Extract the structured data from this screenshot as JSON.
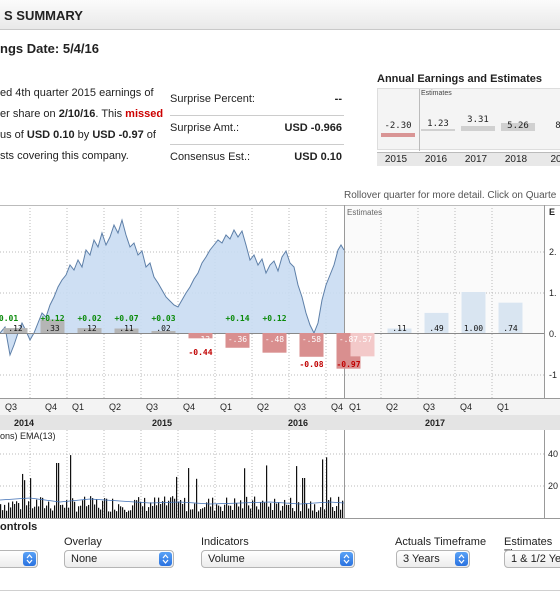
{
  "header": {
    "title": "S SUMMARY"
  },
  "earnings_date": "ngs Date: 5/4/16",
  "summary": {
    "line1": "ed 4th quarter 2015 earnings of",
    "line2_pre": "er share on ",
    "line2_date": "2/10/16",
    "line2_mid": ". This ",
    "line2_missed": "missed",
    "line3_pre": "us of ",
    "line3_consensus": "USD 0.10",
    "line3_mid": " by ",
    "line3_diff": "USD -0.97",
    "line3_post": " of",
    "line4": "sts covering this company."
  },
  "surprise": {
    "percent_label": "Surprise Percent:",
    "percent_value": "--",
    "amt_label": "Surprise Amt.:",
    "amt_value": "USD -0.966",
    "consensus_label": "Consensus Est.:",
    "consensus_value": "USD 0.10"
  },
  "annual": {
    "title": "Annual Earnings and Estimates",
    "estimates_label": "Estimates",
    "values": [
      "-2.30",
      "1.23",
      "3.31",
      "5.26",
      "8"
    ],
    "years": [
      "2015",
      "2016",
      "2017",
      "2018",
      "20"
    ]
  },
  "rollover_note": "Rollover quarter for more detail. Click on Quarte",
  "chart": {
    "estimates_label": "Estimates",
    "right_header": "E",
    "right_ticks": [
      "2.",
      "1.",
      "0.",
      "-1"
    ],
    "quarter_labels": [
      "Q3",
      "Q4",
      "Q1",
      "Q2",
      "Q3",
      "Q4",
      "Q1",
      "Q2",
      "Q3",
      "Q4",
      "Q1",
      "Q2",
      "Q3",
      "Q4",
      "Q1"
    ],
    "year_labels": [
      "2014",
      "2015",
      "2016",
      "2017"
    ],
    "bar_labels": [
      ".12",
      ".33",
      ".12",
      ".11",
      ".02",
      "-.13",
      "-.36",
      "-.48",
      "-.58",
      "-.87",
      "-.57",
      ".11",
      ".49",
      "1.00",
      ".74"
    ],
    "surprise_labels": [
      "0.01",
      "+0.12",
      "+0.02",
      "+0.07",
      "+0.03",
      "-0.44",
      "+0.14",
      "+0.12",
      "-0.08",
      "-0.97"
    ],
    "volume_label": "ons) EMA(13)",
    "volume_ticks": [
      "40",
      "20"
    ]
  },
  "chart_data": {
    "type": "bar",
    "title": "",
    "xlabel": "",
    "ylabel": "",
    "categories": [
      "Q3 2014",
      "Q4 2014",
      "Q1 2015",
      "Q2 2015",
      "Q3 2015",
      "Q4 2015",
      "Q1 2016",
      "Q2 2016",
      "Q3 2016",
      "Q4 2016",
      "Q1 2017",
      "Q2 2017",
      "Q3 2017",
      "Q4 2017",
      "Q1 2018"
    ],
    "values": [
      0.12,
      0.33,
      0.12,
      0.11,
      0.02,
      -0.13,
      -0.36,
      -0.48,
      -0.58,
      -0.87,
      -0.57,
      0.11,
      0.49,
      1.0,
      0.74
    ],
    "surprises": [
      "0.01",
      "+0.12",
      "+0.02",
      "+0.07",
      "+0.03",
      "-0.44",
      "+0.14",
      "+0.12",
      "-0.08",
      "-0.97"
    ]
  },
  "controls": {
    "title": "ontrols",
    "overlay_label": "Overlay",
    "overlay_value": "None",
    "indicators_label": "Indicators",
    "indicators_value": "Volume",
    "actuals_label": "Actuals Timeframe",
    "actuals_value": "3 Years",
    "estimates_label": "Estimates Ti",
    "estimates_value": "1 & 1/2 Ye"
  },
  "colors": {
    "positive": "#0a8a0a",
    "negative": "#c00000",
    "price_fill": "#c9dcf2",
    "price_line": "#5d7fa8",
    "accent": "#2a72e0"
  }
}
